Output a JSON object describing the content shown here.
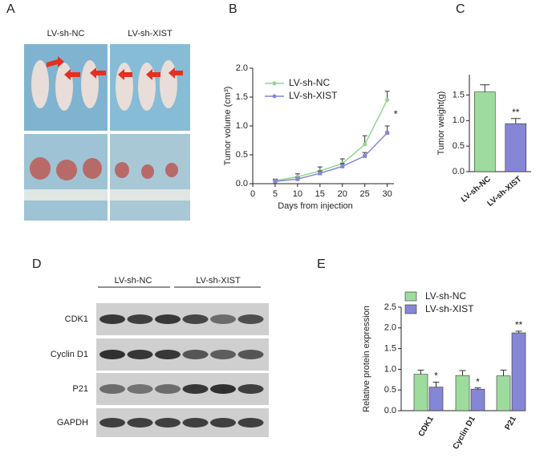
{
  "panel_a": {
    "label": "A",
    "groups": [
      "LV-sh-NC",
      "LV-sh-XIST"
    ]
  },
  "panel_d": {
    "label": "D",
    "groups": [
      "LV-sh-NC",
      "LV-sh-XIST"
    ],
    "rows": [
      "CDK1",
      "Cyclin D1",
      "P21",
      "GAPDH"
    ]
  },
  "chart_data": [
    {
      "type": "line",
      "label": "B",
      "x_label": "Days from injection",
      "y_label": "Tumor volume (cm³)",
      "x": [
        5,
        10,
        15,
        20,
        25,
        30
      ],
      "xlim": [
        0,
        31.5
      ],
      "xticks": [
        0,
        5,
        10,
        15,
        20,
        25,
        30
      ],
      "ylim": [
        0,
        2.0
      ],
      "yticks": [
        {
          "value": 0,
          "label": "0.0"
        },
        {
          "value": 0.5,
          "label": "0.5"
        },
        {
          "value": 1,
          "label": "1.0"
        },
        {
          "value": 1.5,
          "label": "1.5"
        },
        {
          "value": 2,
          "label": "2.0"
        }
      ],
      "series": [
        {
          "name": "LV-sh-NC",
          "color": "#90d690",
          "values": [
            0.05,
            0.12,
            0.22,
            0.35,
            0.68,
            1.45
          ],
          "errors": [
            0.03,
            0.05,
            0.07,
            0.08,
            0.15,
            0.15
          ]
        },
        {
          "name": "LV-sh-XIST",
          "color": "#8686d6",
          "values": [
            0.04,
            0.08,
            0.18,
            0.3,
            0.48,
            0.88
          ],
          "errors": [
            0.02,
            0.03,
            0.04,
            0.05,
            0.06,
            0.12
          ]
        }
      ],
      "annotations": [
        "*"
      ],
      "legend": "upper left"
    },
    {
      "type": "bar",
      "label": "C",
      "y_label": "Tumor weight(g)",
      "categories": [
        "LV-sh-NC",
        "LV-sh-XIST"
      ],
      "values": [
        1.56,
        0.94
      ],
      "errors": [
        0.14,
        0.1
      ],
      "colors": [
        "#9edc9e",
        "#8686d6"
      ],
      "ylim": [
        0,
        1.9
      ],
      "yticks": [
        {
          "value": 0,
          "label": "0.0"
        },
        {
          "value": 0.5,
          "label": "0.5"
        },
        {
          "value": 1,
          "label": "1.0"
        },
        {
          "value": 1.5,
          "label": "1.5"
        }
      ],
      "annotations": [
        null,
        "**"
      ]
    },
    {
      "type": "grouped_bar",
      "label": "E",
      "y_label": "Relative protein expression",
      "categories": [
        "CDK1",
        "Cyclin D1",
        "P21"
      ],
      "ylim": [
        0,
        2.5
      ],
      "yticks": [
        {
          "value": 0,
          "label": "0.0"
        },
        {
          "value": 0.5,
          "label": "0.5"
        },
        {
          "value": 1,
          "label": "1.0"
        },
        {
          "value": 1.5,
          "label": "1.5"
        },
        {
          "value": 2,
          "label": "2.0"
        },
        {
          "value": 2.5,
          "label": "2.5"
        }
      ],
      "series": [
        {
          "name": "LV-sh-NC",
          "color": "#9edc9e",
          "values": [
            0.88,
            0.85,
            0.84
          ],
          "errors": [
            0.1,
            0.12,
            0.14
          ]
        },
        {
          "name": "LV-sh-XIST",
          "color": "#8686d6",
          "values": [
            0.57,
            0.52,
            1.88
          ],
          "errors": [
            0.12,
            0.03,
            0.04
          ]
        }
      ],
      "annotations": [
        "*",
        "*",
        "**"
      ],
      "legend": "upper left"
    }
  ]
}
